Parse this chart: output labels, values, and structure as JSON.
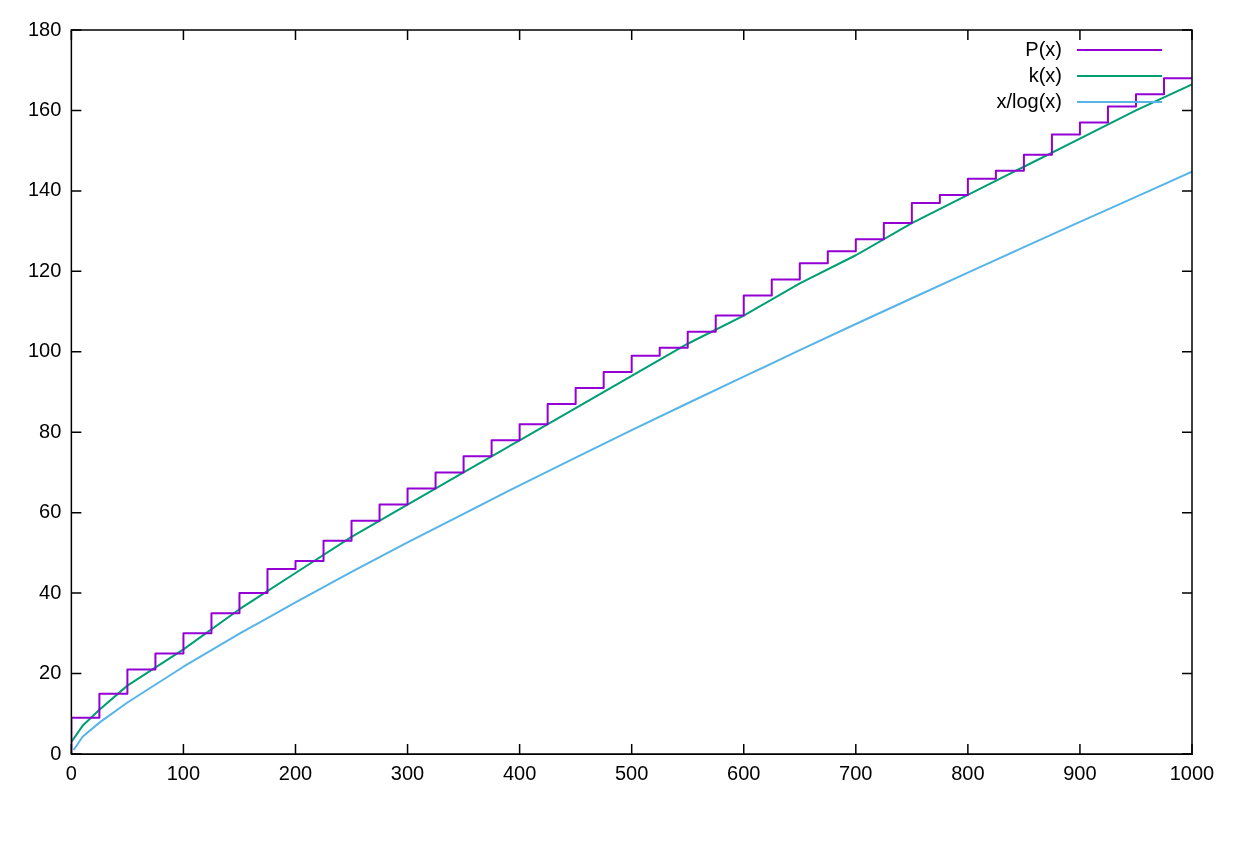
{
  "chart_data": {
    "type": "line",
    "x": [
      0,
      25,
      50,
      75,
      100,
      125,
      150,
      175,
      200,
      225,
      250,
      275,
      300,
      325,
      350,
      375,
      400,
      425,
      450,
      475,
      500,
      525,
      550,
      575,
      600,
      625,
      650,
      675,
      700,
      725,
      750,
      775,
      800,
      825,
      850,
      875,
      900,
      925,
      950,
      975,
      1000
    ],
    "series": [
      {
        "name": "P(x)",
        "type": "step",
        "color": "#9400d3",
        "values": [
          0,
          9,
          15,
          21,
          25,
          30,
          35,
          40,
          46,
          48,
          53,
          58,
          62,
          66,
          70,
          74,
          78,
          82,
          87,
          91,
          95,
          99,
          101,
          105,
          109,
          114,
          118,
          122,
          125,
          128,
          132,
          137,
          139,
          143,
          145,
          149,
          154,
          157,
          161,
          164,
          168
        ]
      },
      {
        "name": "k(x)",
        "color": "#009e73",
        "x": [
          0,
          10,
          25,
          50,
          100,
          150,
          200,
          250,
          300,
          350,
          400,
          450,
          500,
          550,
          600,
          650,
          700,
          750,
          800,
          850,
          900,
          950,
          1000
        ],
        "values": [
          3,
          7,
          11,
          17,
          26,
          36,
          45,
          54,
          62,
          70,
          78,
          86,
          94,
          102,
          109,
          117,
          124,
          132,
          139,
          146,
          153,
          160,
          166.5
        ]
      },
      {
        "name": "x/log(x)",
        "color": "#56b4e9",
        "x": [
          2,
          10,
          25,
          50,
          100,
          150,
          200,
          250,
          300,
          350,
          400,
          450,
          500,
          550,
          600,
          650,
          700,
          750,
          800,
          850,
          900,
          950,
          1000
        ],
        "values": [
          1,
          4.3,
          7.8,
          12.8,
          21.7,
          29.9,
          37.7,
          45.3,
          52.6,
          59.7,
          66.8,
          73.7,
          80.5,
          87.2,
          93.8,
          100.4,
          106.9,
          113.3,
          119.7,
          126,
          132.3,
          138.5,
          144.8
        ]
      }
    ],
    "xlim": [
      0,
      1000
    ],
    "xticks": [
      0,
      100,
      200,
      300,
      400,
      500,
      600,
      700,
      800,
      900,
      1000
    ],
    "ylim": [
      0,
      180
    ],
    "yticks": [
      0,
      20,
      40,
      60,
      80,
      100,
      120,
      140,
      160,
      180
    ],
    "grid": false,
    "legend": "top right",
    "marker": "none"
  }
}
